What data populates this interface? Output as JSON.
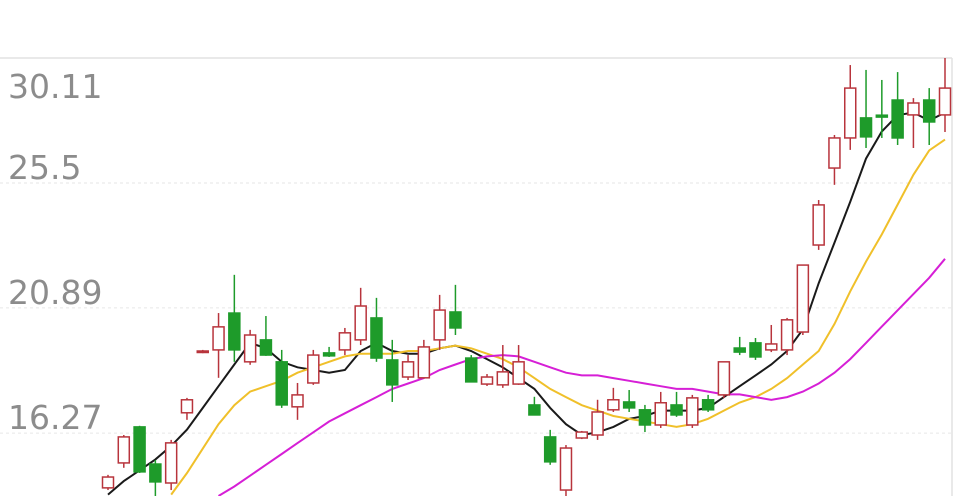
{
  "chart_data": {
    "type": "candlestick",
    "categories": [
      null,
      null,
      null,
      null,
      null,
      null,
      null,
      null,
      null,
      null,
      null,
      null,
      null,
      null,
      null,
      null,
      null,
      null,
      null,
      null,
      null,
      null,
      null,
      null,
      null,
      null,
      null,
      null,
      null,
      null,
      null,
      null,
      null,
      null,
      null,
      null,
      null,
      null,
      null,
      null,
      null,
      null,
      null,
      null,
      null,
      null,
      null,
      null,
      null,
      null,
      null,
      null,
      null,
      null
    ],
    "open": [
      14.25,
      15.17,
      16.5,
      15.13,
      14.43,
      17.02,
      19.26,
      19.34,
      20.7,
      18.9,
      19.71,
      18.9,
      17.24,
      18.12,
      19.23,
      19.34,
      19.71,
      20.52,
      18.97,
      18.34,
      18.31,
      19.71,
      20.74,
      19.04,
      18.08,
      18.05,
      18.08,
      17.31,
      16.13,
      14.17,
      16.09,
      16.2,
      17.13,
      17.42,
      17.13,
      16.57,
      17.31,
      16.57,
      17.5,
      17.68,
      19.41,
      19.6,
      19.34,
      19.34,
      20.0,
      23.21,
      26.05,
      27.16,
      27.9,
      28.0,
      28.56,
      28.01,
      28.56,
      28.01
    ],
    "close": [
      14.65,
      16.13,
      14.84,
      14.47,
      15.91,
      17.5,
      19.3,
      20.19,
      19.34,
      19.89,
      19.15,
      17.31,
      17.68,
      19.15,
      19.12,
      19.97,
      20.96,
      19.04,
      18.05,
      18.9,
      19.45,
      20.81,
      20.15,
      18.16,
      18.34,
      18.53,
      18.9,
      16.94,
      15.21,
      15.72,
      16.31,
      17.05,
      17.5,
      17.2,
      16.57,
      17.39,
      16.94,
      17.57,
      17.13,
      18.9,
      19.26,
      19.08,
      19.56,
      20.45,
      22.47,
      24.69,
      27.16,
      29.0,
      27.2,
      27.93,
      27.16,
      28.45,
      27.75,
      29.0
    ],
    "high": [
      14.73,
      16.2,
      16.54,
      15.28,
      16.02,
      17.57,
      19.34,
      20.7,
      22.11,
      20.08,
      20.59,
      19.34,
      18.12,
      19.34,
      19.45,
      20.15,
      21.63,
      21.26,
      19.71,
      19.15,
      19.71,
      21.37,
      21.74,
      19.15,
      18.45,
      19.52,
      19.52,
      17.61,
      16.39,
      15.83,
      16.35,
      17.5,
      17.94,
      17.86,
      17.31,
      17.79,
      17.79,
      17.68,
      17.68,
      18.9,
      19.82,
      19.78,
      20.26,
      20.52,
      22.47,
      24.87,
      27.27,
      29.85,
      29.67,
      29.3,
      29.59,
      28.63,
      29.0,
      30.11
    ],
    "low": [
      14.17,
      14.99,
      14.8,
      13.95,
      14.17,
      16.76,
      19.22,
      18.31,
      18.9,
      18.79,
      19.12,
      17.2,
      16.76,
      18.05,
      19.08,
      19.15,
      19.52,
      18.9,
      17.42,
      18.23,
      18.31,
      19.34,
      19.89,
      18.16,
      18.01,
      17.94,
      18.05,
      16.94,
      15.1,
      13.95,
      16.05,
      16.02,
      17.05,
      17.05,
      16.31,
      16.46,
      16.87,
      16.46,
      17.05,
      17.57,
      19.15,
      18.97,
      19.26,
      19.15,
      19.89,
      23.03,
      25.43,
      26.72,
      26.79,
      27.16,
      26.9,
      26.79,
      26.9,
      27.38
    ],
    "up_color": "#b8343c",
    "down_color": "#1e9b2a",
    "lines": [
      {
        "color": "#1a1a1a",
        "values": [
          14.0,
          14.5,
          14.9,
          15.3,
          15.8,
          16.4,
          17.2,
          18.0,
          18.8,
          19.6,
          19.4,
          18.9,
          18.7,
          18.6,
          18.5,
          18.6,
          19.3,
          19.6,
          19.3,
          19.2,
          19.2,
          19.4,
          19.5,
          19.3,
          19.0,
          18.7,
          18.3,
          17.9,
          17.2,
          16.6,
          16.2,
          16.3,
          16.5,
          16.8,
          16.9,
          17.1,
          17.1,
          17.1,
          17.2,
          17.6,
          18.0,
          18.4,
          18.8,
          19.3,
          20.1,
          21.8,
          23.3,
          24.8,
          26.4,
          27.4,
          28.0,
          28.1,
          27.8,
          28.1
        ]
      },
      {
        "color": "#f0c02a",
        "values": [
          null,
          null,
          null,
          null,
          14.0,
          14.8,
          15.7,
          16.6,
          17.3,
          17.8,
          18.0,
          18.2,
          18.5,
          18.7,
          18.9,
          19.1,
          19.2,
          19.2,
          19.2,
          19.3,
          19.3,
          19.4,
          19.5,
          19.4,
          19.2,
          19.0,
          18.7,
          18.3,
          17.9,
          17.6,
          17.3,
          17.1,
          16.9,
          16.8,
          16.7,
          16.6,
          16.5,
          16.6,
          16.8,
          17.1,
          17.4,
          17.6,
          17.9,
          18.3,
          18.8,
          19.3,
          20.3,
          21.5,
          22.6,
          23.6,
          24.7,
          25.8,
          26.7,
          27.1
        ]
      },
      {
        "color": "#d61fd6",
        "values": [
          null,
          null,
          null,
          null,
          null,
          null,
          null,
          13.95,
          14.3,
          14.7,
          15.1,
          15.5,
          15.9,
          16.3,
          16.7,
          17.0,
          17.3,
          17.6,
          17.9,
          18.1,
          18.3,
          18.6,
          18.8,
          19.0,
          19.1,
          19.15,
          19.1,
          18.9,
          18.7,
          18.5,
          18.4,
          18.4,
          18.3,
          18.2,
          18.1,
          18.0,
          17.9,
          17.9,
          17.8,
          17.7,
          17.7,
          17.6,
          17.5,
          17.6,
          17.8,
          18.1,
          18.5,
          19.0,
          19.6,
          20.2,
          20.8,
          21.4,
          22.0,
          22.7
        ]
      }
    ],
    "ylim": [
      13.95,
      30.11
    ],
    "yticks": [
      30.11,
      25.5,
      20.89,
      16.27
    ],
    "grid": true
  }
}
